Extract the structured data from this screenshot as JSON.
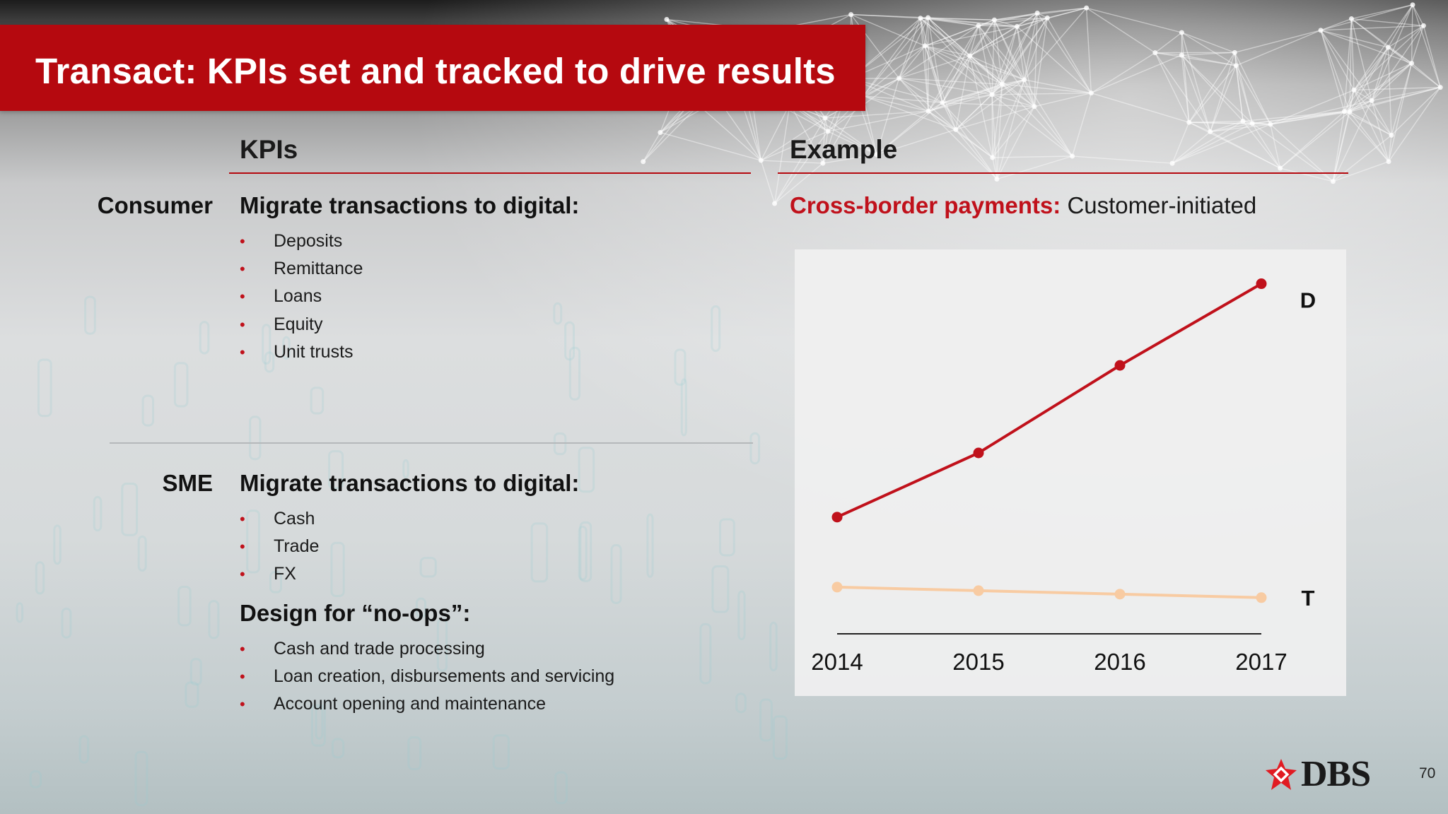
{
  "title": "Transact: KPIs set and tracked to drive results",
  "columns": {
    "kpis": "KPIs",
    "example": "Example"
  },
  "consumer": {
    "label": "Consumer",
    "heading": "Migrate transactions to digital:",
    "items": [
      "Deposits",
      "Remittance",
      "Loans",
      "Equity",
      "Unit trusts"
    ]
  },
  "sme": {
    "label": "SME",
    "heading": "Migrate transactions to digital:",
    "items": [
      "Cash",
      "Trade",
      "FX"
    ],
    "heading2": "Design for “no-ops”:",
    "items2": [
      "Cash and trade processing",
      "Loan creation, disbursements and servicing",
      "Account opening and maintenance"
    ]
  },
  "example": {
    "highlight": "Cross-border payments:",
    "rest": "Customer-initiated"
  },
  "chart_data": {
    "type": "line",
    "categories": [
      "2014",
      "2015",
      "2016",
      "2017"
    ],
    "series": [
      {
        "name": "D",
        "values": [
          1.0,
          1.55,
          2.3,
          3.0
        ],
        "color": "#c0111b"
      },
      {
        "name": "T",
        "values": [
          0.4,
          0.37,
          0.34,
          0.31
        ],
        "color": "#f8cba2"
      }
    ],
    "ylim": [
      0,
      3.1
    ],
    "grid": false,
    "legend": "series labels at right end of lines"
  },
  "logo": {
    "text": "DBS",
    "color": "#e11b22"
  },
  "page_number": "70",
  "colors": {
    "accent": "#b5090f",
    "bullet": "#c0111b"
  }
}
